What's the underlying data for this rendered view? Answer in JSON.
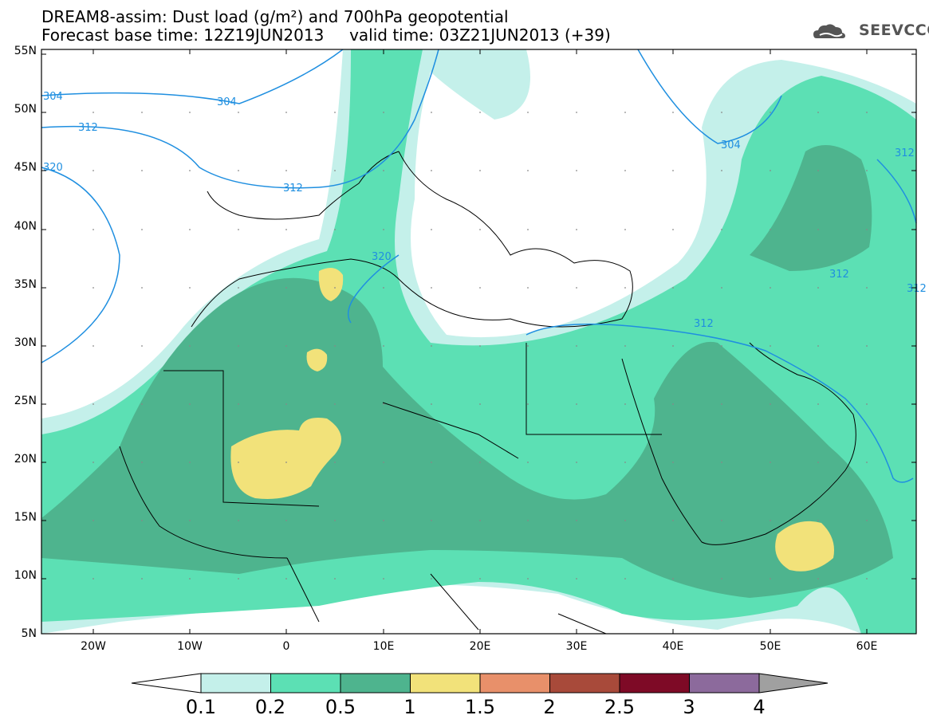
{
  "header": {
    "title_line1": "DREAM8-assim: Dust load (g/m²) and 700hPa geopotential",
    "title_line2": "Forecast base time: 12Z19JUN2013     valid time: 03Z21JUN2013 (+39)",
    "logo_text": "SEEVCCC"
  },
  "map": {
    "lat_ticks": [
      "55N",
      "50N",
      "45N",
      "40N",
      "35N",
      "30N",
      "25N",
      "20N",
      "15N",
      "10N",
      "5N"
    ],
    "lon_ticks": [
      "20W",
      "10W",
      "0",
      "10E",
      "20E",
      "30E",
      "40E",
      "50E",
      "60E"
    ],
    "contour_labels": [
      "304",
      "304",
      "312",
      "312",
      "320",
      "320",
      "304",
      "312",
      "312",
      "312",
      "312"
    ]
  },
  "colorbar": {
    "labels": [
      "0.1",
      "0.2",
      "0.5",
      "1",
      "1.5",
      "2",
      "2.5",
      "3",
      "4"
    ],
    "colors": [
      "#c4f0ea",
      "#5ce0b4",
      "#4eb48e",
      "#f2e27a",
      "#e8906a",
      "#a84a3a",
      "#7e0a26",
      "#8c6a9c",
      "#a0a0a0"
    ]
  }
}
